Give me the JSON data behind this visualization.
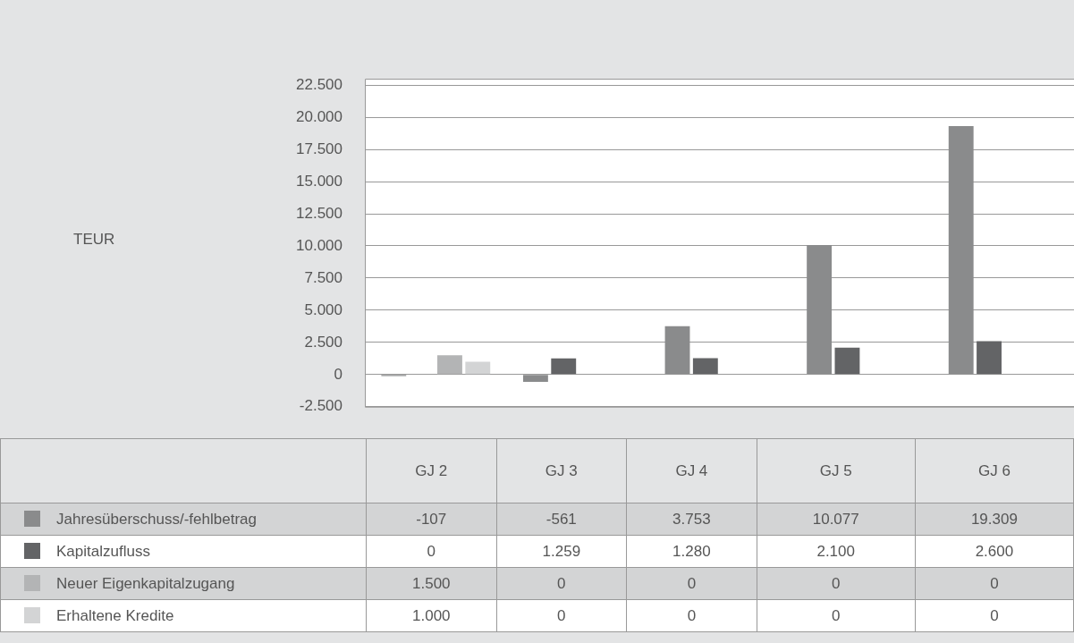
{
  "chart_data": {
    "type": "bar",
    "annotations": [
      "TEUR"
    ],
    "categories": [
      "GJ 2",
      "GJ 3",
      "GJ 4",
      "GJ 5",
      "GJ 6"
    ],
    "series": [
      {
        "name": "Jahresüberschuss/-fehlbetrag",
        "color": "#8a8b8c",
        "values": [
          -107,
          -561,
          3753,
          10077,
          19309
        ],
        "value_labels": [
          "-107",
          "-561",
          "3.753",
          "10.077",
          "19.309"
        ]
      },
      {
        "name": "Kapitalzufluss",
        "color": "#636466",
        "values": [
          0,
          1259,
          1280,
          2100,
          2600
        ],
        "value_labels": [
          "0",
          "1.259",
          "1.280",
          "2.100",
          "2.600"
        ]
      },
      {
        "name": "Neuer Eigenkapitalzugang",
        "color": "#b3b4b5",
        "values": [
          1500,
          0,
          0,
          0,
          0
        ],
        "value_labels": [
          "1.500",
          "0",
          "0",
          "0",
          "0"
        ]
      },
      {
        "name": "Erhaltene Kredite",
        "color": "#d3d4d5",
        "values": [
          1000,
          0,
          0,
          0,
          0
        ],
        "value_labels": [
          "1.000",
          "0",
          "0",
          "0",
          "0"
        ]
      }
    ],
    "ylim": [
      -2500,
      23000
    ],
    "yticks": [
      {
        "value": -2500,
        "label": "-2.500"
      },
      0,
      {
        "value": 2500,
        "label": "2.500"
      },
      {
        "value": 5000,
        "label": "5.000"
      },
      {
        "value": 7500,
        "label": "7.500"
      },
      {
        "value": 10000,
        "label": "10.000"
      },
      {
        "value": 12500,
        "label": "12.500"
      },
      {
        "value": 15000,
        "label": "15.000"
      },
      {
        "value": 17500,
        "label": "17.500"
      },
      {
        "value": 20000,
        "label": "20.000"
      },
      {
        "value": 22500,
        "label": "22.500"
      }
    ],
    "grid": "y",
    "legend": "bottom"
  }
}
